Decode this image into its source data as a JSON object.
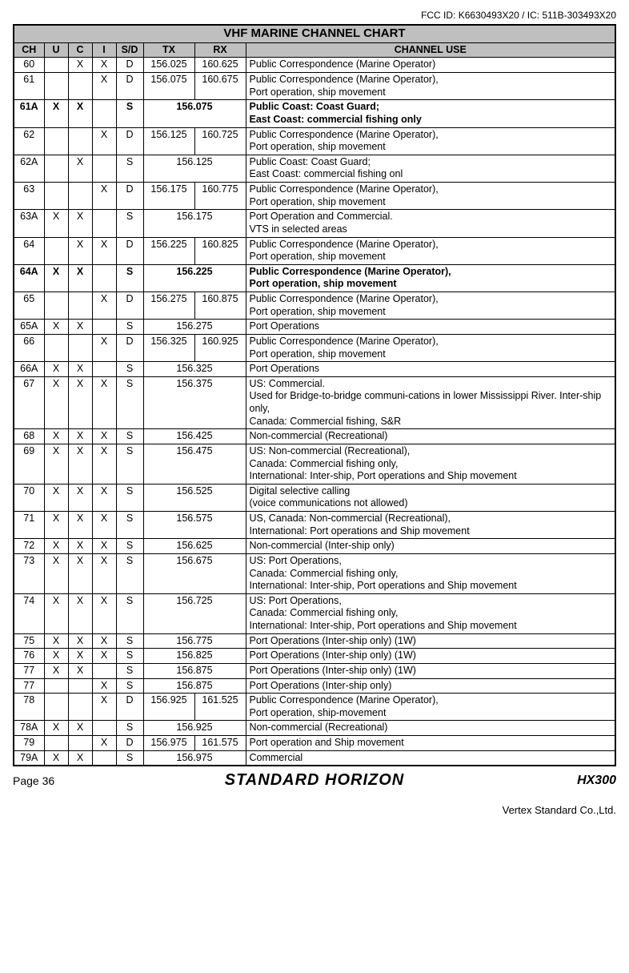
{
  "fcc_id": "FCC ID: K6630493X20 / IC: 511B-303493X20",
  "title": "VHF MARINE CHANNEL CHART",
  "columns": [
    "CH",
    "U",
    "C",
    "I",
    "S/D",
    "TX",
    "RX",
    "CHANNEL USE"
  ],
  "rows": [
    {
      "ch": "60",
      "u": "",
      "c": "X",
      "i": "X",
      "sd": "D",
      "tx": "156.025",
      "rx": "160.625",
      "use": "Public Correspondence (Marine Operator)",
      "bold": false,
      "merge": false
    },
    {
      "ch": "61",
      "u": "",
      "c": "",
      "i": "X",
      "sd": "D",
      "tx": "156.075",
      "rx": "160.675",
      "use": "Public Correspondence (Marine Operator),\nPort operation, ship movement",
      "bold": false,
      "merge": false
    },
    {
      "ch": "61A",
      "u": "X",
      "c": "X",
      "i": "",
      "sd": "S",
      "tx": "156.075",
      "rx": "",
      "use": "Public Coast: Coast Guard;\nEast Coast: commercial fishing only",
      "bold": true,
      "merge": true
    },
    {
      "ch": "62",
      "u": "",
      "c": "",
      "i": "X",
      "sd": "D",
      "tx": "156.125",
      "rx": "160.725",
      "use": "Public Correspondence (Marine Operator),\nPort operation, ship movement",
      "bold": false,
      "merge": false
    },
    {
      "ch": "62A",
      "u": "",
      "c": "X",
      "i": "",
      "sd": "S",
      "tx": "156.125",
      "rx": "",
      "use": "Public Coast: Coast Guard;\nEast Coast: commercial fishing onl",
      "bold": false,
      "merge": true
    },
    {
      "ch": "63",
      "u": "",
      "c": "",
      "i": "X",
      "sd": "D",
      "tx": "156.175",
      "rx": "160.775",
      "use": "Public Correspondence (Marine Operator),\nPort operation, ship movement",
      "bold": false,
      "merge": false
    },
    {
      "ch": "63A",
      "u": "X",
      "c": "X",
      "i": "",
      "sd": "S",
      "tx": "156.175",
      "rx": "",
      "use": "Port Operation and Commercial.\nVTS in selected areas",
      "bold": false,
      "merge": true
    },
    {
      "ch": "64",
      "u": "",
      "c": "X",
      "i": "X",
      "sd": "D",
      "tx": "156.225",
      "rx": "160.825",
      "use": "Public Correspondence (Marine Operator),\nPort operation, ship movement",
      "bold": false,
      "merge": false
    },
    {
      "ch": "64A",
      "u": "X",
      "c": "X",
      "i": "",
      "sd": "S",
      "tx": "156.225",
      "rx": "",
      "use": "Public Correspondence (Marine Operator),\nPort operation, ship movement",
      "bold": true,
      "merge": true
    },
    {
      "ch": "65",
      "u": "",
      "c": "",
      "i": "X",
      "sd": "D",
      "tx": "156.275",
      "rx": "160.875",
      "use": "Public Correspondence (Marine Operator),\nPort operation, ship movement",
      "bold": false,
      "merge": false
    },
    {
      "ch": "65A",
      "u": "X",
      "c": "X",
      "i": "",
      "sd": "S",
      "tx": "156.275",
      "rx": "",
      "use": "Port Operations",
      "bold": false,
      "merge": true
    },
    {
      "ch": "66",
      "u": "",
      "c": "",
      "i": "X",
      "sd": "D",
      "tx": "156.325",
      "rx": "160.925",
      "use": "Public Correspondence (Marine Operator),\nPort operation, ship movement",
      "bold": false,
      "merge": false
    },
    {
      "ch": "66A",
      "u": "X",
      "c": "X",
      "i": "",
      "sd": "S",
      "tx": "156.325",
      "rx": "",
      "use": "Port Operations",
      "bold": false,
      "merge": true
    },
    {
      "ch": "67",
      "u": "X",
      "c": "X",
      "i": "X",
      "sd": "S",
      "tx": "156.375",
      "rx": "",
      "use": "US: Commercial.\nUsed for Bridge-to-bridge communi-cations in lower Mississippi River. Inter-ship only,\nCanada: Commercial fishing, S&R",
      "bold": false,
      "merge": true
    },
    {
      "ch": "68",
      "u": "X",
      "c": "X",
      "i": "X",
      "sd": "S",
      "tx": "156.425",
      "rx": "",
      "use": "Non-commercial (Recreational)",
      "bold": false,
      "merge": true
    },
    {
      "ch": "69",
      "u": "X",
      "c": "X",
      "i": "X",
      "sd": "S",
      "tx": "156.475",
      "rx": "",
      "use": "US: Non-commercial (Recreational),\nCanada: Commercial fishing only,\nInternational: Inter-ship, Port operations and Ship movement",
      "bold": false,
      "merge": true
    },
    {
      "ch": "70",
      "u": "X",
      "c": "X",
      "i": "X",
      "sd": "S",
      "tx": "156.525",
      "rx": "",
      "use": "Digital selective calling\n(voice communications not allowed)",
      "bold": false,
      "merge": true
    },
    {
      "ch": "71",
      "u": "X",
      "c": "X",
      "i": "X",
      "sd": "S",
      "tx": "156.575",
      "rx": "",
      "use": "US, Canada: Non-commercial (Recreational),\nInternational: Port operations and Ship movement",
      "bold": false,
      "merge": true
    },
    {
      "ch": "72",
      "u": "X",
      "c": "X",
      "i": "X",
      "sd": "S",
      "tx": "156.625",
      "rx": "",
      "use": "Non-commercial (Inter-ship only)",
      "bold": false,
      "merge": true
    },
    {
      "ch": "73",
      "u": "X",
      "c": "X",
      "i": "X",
      "sd": "S",
      "tx": "156.675",
      "rx": "",
      "use": "US: Port Operations,\nCanada: Commercial fishing only,\nInternational: Inter-ship, Port operations and Ship movement",
      "bold": false,
      "merge": true
    },
    {
      "ch": "74",
      "u": "X",
      "c": "X",
      "i": "X",
      "sd": "S",
      "tx": "156.725",
      "rx": "",
      "use": "US: Port Operations,\nCanada: Commercial fishing only,\nInternational: Inter-ship, Port operations and Ship movement",
      "bold": false,
      "merge": true
    },
    {
      "ch": "75",
      "u": "X",
      "c": "X",
      "i": "X",
      "sd": "S",
      "tx": "156.775",
      "rx": "",
      "use": "Port Operations (Inter-ship only) (1W)",
      "bold": false,
      "merge": true
    },
    {
      "ch": "76",
      "u": "X",
      "c": "X",
      "i": "X",
      "sd": "S",
      "tx": "156.825",
      "rx": "",
      "use": "Port Operations (Inter-ship only) (1W)",
      "bold": false,
      "merge": true
    },
    {
      "ch": "77",
      "u": "X",
      "c": "X",
      "i": "",
      "sd": "S",
      "tx": "156.875",
      "rx": "",
      "use": "Port Operations (Inter-ship only) (1W)",
      "bold": false,
      "merge": true
    },
    {
      "ch": "77",
      "u": "",
      "c": "",
      "i": "X",
      "sd": "S",
      "tx": "156.875",
      "rx": "",
      "use": "Port Operations (Inter-ship only)",
      "bold": false,
      "merge": true
    },
    {
      "ch": "78",
      "u": "",
      "c": "",
      "i": "X",
      "sd": "D",
      "tx": "156.925",
      "rx": "161.525",
      "use": "Public Correspondence (Marine Operator),\nPort operation, ship-movement",
      "bold": false,
      "merge": false
    },
    {
      "ch": "78A",
      "u": "X",
      "c": "X",
      "i": "",
      "sd": "S",
      "tx": "156.925",
      "rx": "",
      "use": "Non-commercial (Recreational)",
      "bold": false,
      "merge": true
    },
    {
      "ch": "79",
      "u": "",
      "c": "",
      "i": "X",
      "sd": "D",
      "tx": "156.975",
      "rx": "161.575",
      "use": "Port operation and Ship movement",
      "bold": false,
      "merge": false
    },
    {
      "ch": "79A",
      "u": "X",
      "c": "X",
      "i": "",
      "sd": "S",
      "tx": "156.975",
      "rx": "",
      "use": "Commercial",
      "bold": false,
      "merge": true
    }
  ],
  "footer": {
    "page": "Page 36",
    "brand": "STANDARD HORIZON",
    "model": "HX300"
  },
  "vertex": "Vertex Standard Co.,Ltd."
}
